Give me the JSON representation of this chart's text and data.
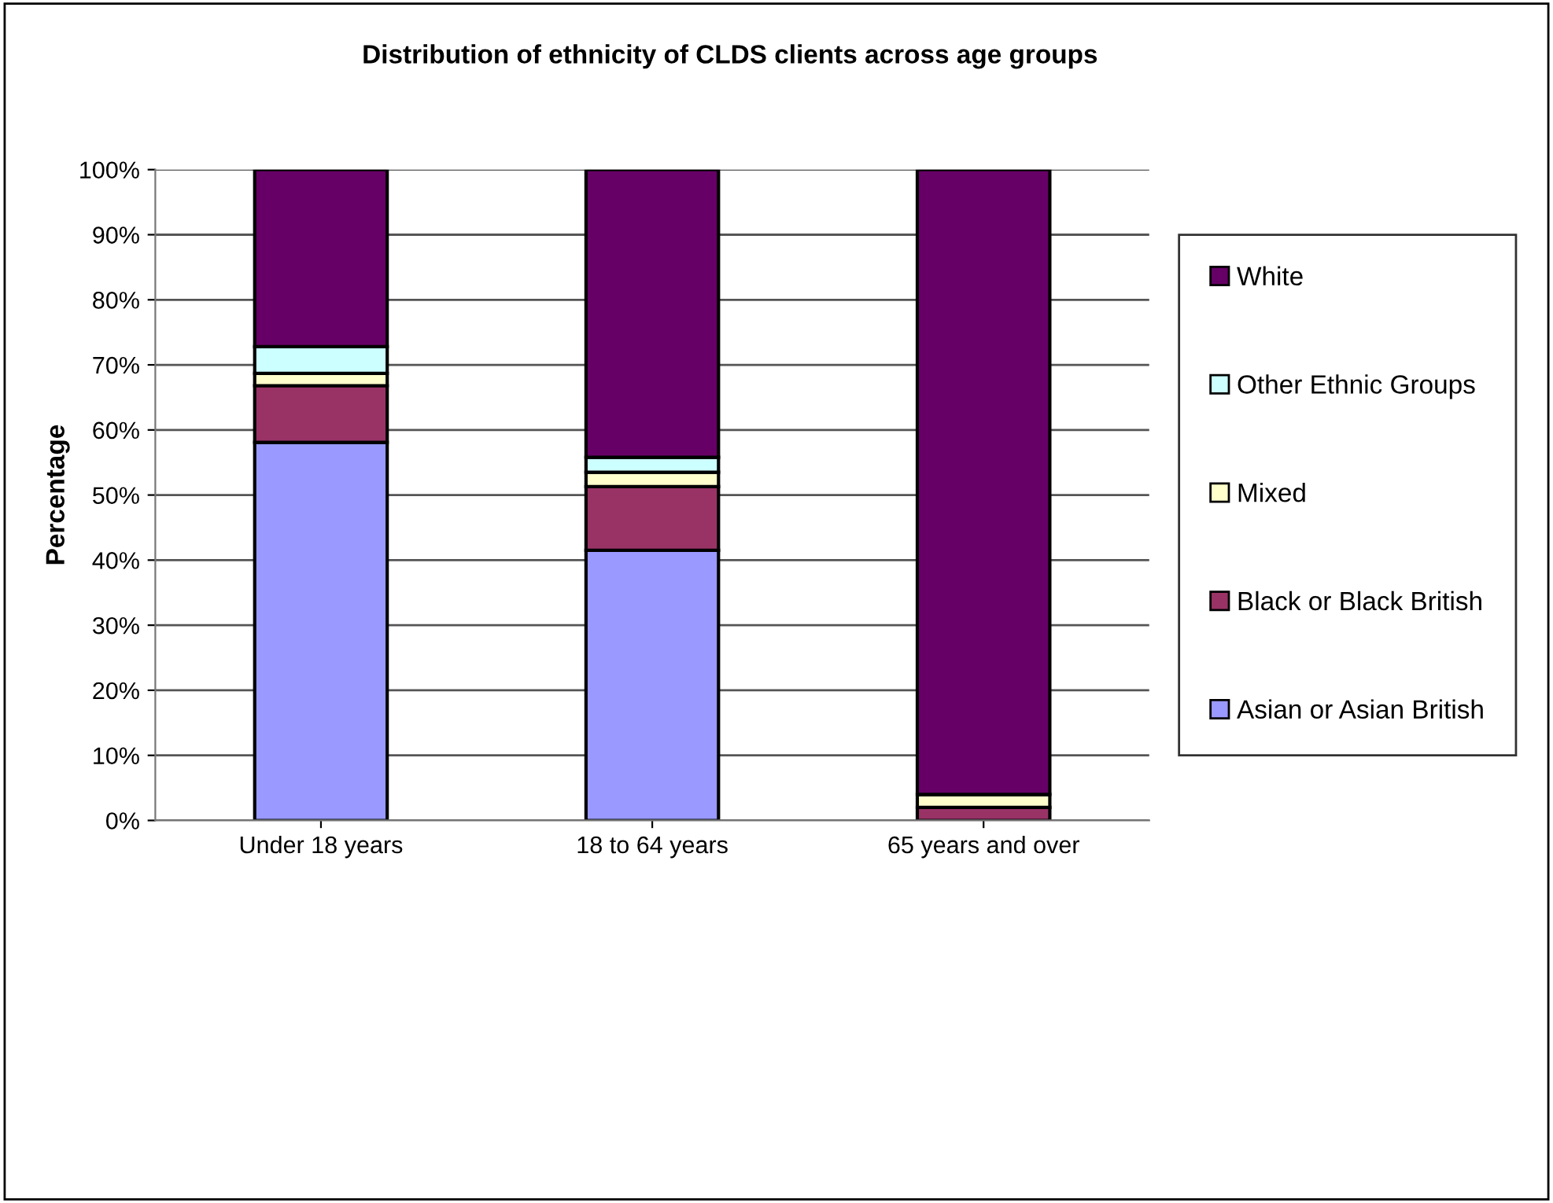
{
  "chart_data": {
    "type": "bar",
    "stacked": true,
    "title": "Distribution of ethnicity of CLDS clients across age groups",
    "ylabel": "Percentage",
    "categories": [
      "Under 18 years",
      "18 to 64 years",
      "65 years and over"
    ],
    "series": [
      {
        "name": "Asian or Asian British",
        "color": "#9999ff",
        "values": [
          58.1,
          41.5,
          0
        ]
      },
      {
        "name": "Black or Black British",
        "color": "#993366",
        "values": [
          8.7,
          9.8,
          2
        ]
      },
      {
        "name": "Mixed",
        "color": "#ffffcc",
        "values": [
          1.9,
          2.2,
          2
        ]
      },
      {
        "name": "Other Ethnic Groups",
        "color": "#ccffff",
        "values": [
          4.1,
          2.3,
          0
        ]
      },
      {
        "name": "White",
        "color": "#660066",
        "values": [
          27.2,
          44.2,
          96
        ]
      }
    ],
    "ylim": [
      0,
      100
    ],
    "yticks": [
      {
        "value": 0,
        "label": "0%"
      },
      {
        "value": 10,
        "label": "10%"
      },
      {
        "value": 20,
        "label": "20%"
      },
      {
        "value": 30,
        "label": "30%"
      },
      {
        "value": 40,
        "label": "40%"
      },
      {
        "value": 50,
        "label": "50%"
      },
      {
        "value": 60,
        "label": "60%"
      },
      {
        "value": 70,
        "label": "70%"
      },
      {
        "value": 80,
        "label": "80%"
      },
      {
        "value": 90,
        "label": "90%"
      },
      {
        "value": 100,
        "label": "100%"
      }
    ],
    "grid": "y",
    "legend": "right"
  }
}
